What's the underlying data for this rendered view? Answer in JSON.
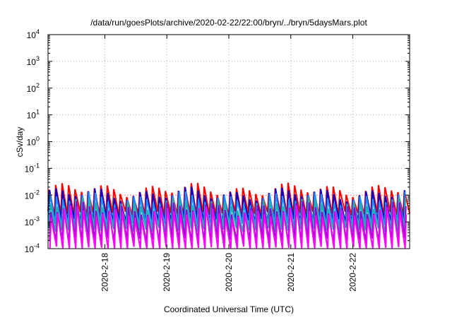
{
  "chart_data": {
    "type": "line",
    "title": "/data/run/goesPlots/archive/2020-02-22/22:00/bryn/../bryn/5daysMars.plot",
    "xlabel": "Coordinated Universal Time (UTC)",
    "ylabel": "cSv/day",
    "y_scale": "log",
    "ylim": [
      0.0001,
      10000
    ],
    "y_ticks": [
      {
        "exp": "-4",
        "value": 0.0001
      },
      {
        "exp": "-3",
        "value": 0.001
      },
      {
        "exp": "-2",
        "value": 0.01
      },
      {
        "exp": "-1",
        "value": 0.1
      },
      {
        "exp": "0",
        "value": 1
      },
      {
        "exp": "1",
        "value": 10
      },
      {
        "exp": "2",
        "value": 100
      },
      {
        "exp": "3",
        "value": 1000
      },
      {
        "exp": "4",
        "value": 10000
      }
    ],
    "y_tick_base": "10",
    "xlim": [
      "2020-02-17 02:00",
      "2020-02-22 22:00"
    ],
    "x_ticks": [
      "2020-2-18",
      "2020-2-19",
      "2020-2-20",
      "2020-2-21",
      "2020-2-22"
    ],
    "grid": true,
    "reference_line": {
      "value": 0.01,
      "color": "#ff8c8c"
    },
    "sawtooth_period_hours": 2.5,
    "series": [
      {
        "color": "#ff0000",
        "peak": 0.016,
        "trough": 0.0025
      },
      {
        "color": "#0000cc",
        "peak": 0.011,
        "trough": 0.0013
      },
      {
        "color": "#1e90ff",
        "peak": 0.0075,
        "trough": 0.0009
      },
      {
        "color": "#20b2aa",
        "peak": 0.0045,
        "trough": 0.0006
      },
      {
        "color": "#9400d3",
        "peak": 0.0032,
        "trough": 0.00025
      },
      {
        "color": "#ff00ff",
        "peak": 0.0022,
        "trough": 0.00012
      }
    ]
  }
}
